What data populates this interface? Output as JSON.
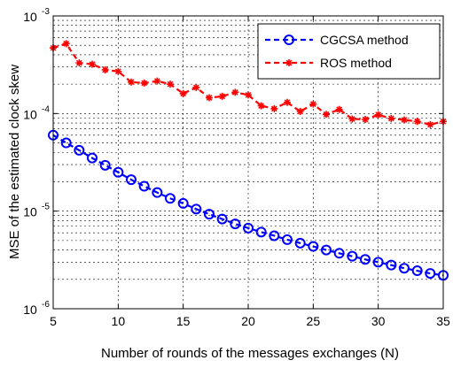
{
  "chart_data": {
    "type": "line",
    "title": "",
    "xlabel": "Number of rounds of the messages exchanges (N)",
    "ylabel": "MSE of the estimated clock skew",
    "xlim": [
      5,
      35
    ],
    "ylim": [
      1e-06,
      0.001
    ],
    "yscale": "log",
    "grid": true,
    "legend_position": "top-right",
    "x_ticks": [
      5,
      10,
      15,
      20,
      25,
      30,
      35
    ],
    "x_tick_labels": [
      "5",
      "10",
      "15",
      "20",
      "25",
      "30",
      "35"
    ],
    "y_ticks": [
      {
        "value": 1e-06,
        "base": "10",
        "exp": "-6"
      },
      {
        "value": 1e-05,
        "base": "10",
        "exp": "-5"
      },
      {
        "value": 0.0001,
        "base": "10",
        "exp": "-4"
      },
      {
        "value": 0.001,
        "base": "10",
        "exp": "-3"
      }
    ],
    "x": [
      5,
      6,
      7,
      8,
      9,
      10,
      11,
      12,
      13,
      14,
      15,
      16,
      17,
      18,
      19,
      20,
      21,
      22,
      23,
      24,
      25,
      26,
      27,
      28,
      29,
      30,
      31,
      32,
      33,
      34,
      35
    ],
    "series": [
      {
        "name": "CGCSA method",
        "color": "#0000ff",
        "marker": "circle",
        "line_style": "dashed",
        "values": [
          6e-05,
          5e-05,
          4.2e-05,
          3.5e-05,
          2.95e-05,
          2.5e-05,
          2.1e-05,
          1.8e-05,
          1.55e-05,
          1.35e-05,
          1.2e-05,
          1.05e-05,
          9.3e-06,
          8.3e-06,
          7.4e-06,
          6.7e-06,
          6.1e-06,
          5.6e-06,
          5.1e-06,
          4.7e-06,
          4.35e-06,
          4e-06,
          3.7e-06,
          3.45e-06,
          3.2e-06,
          3e-06,
          2.8e-06,
          2.6e-06,
          2.45e-06,
          2.3e-06,
          2.2e-06
        ]
      },
      {
        "name": "ROS method",
        "color": "#ff0000",
        "marker": "star",
        "line_style": "dashed",
        "values": [
          0.00047,
          0.00052,
          0.00033,
          0.00032,
          0.00028,
          0.00027,
          0.00021,
          0.000205,
          0.000215,
          0.0002,
          0.00016,
          0.000185,
          0.000145,
          0.00015,
          0.000165,
          0.000155,
          0.00012,
          0.000112,
          0.00013,
          0.000105,
          0.000125,
          9.8e-05,
          0.00011,
          8.8e-05,
          8.7e-05,
          9.7e-05,
          8.9e-05,
          8.6e-05,
          8.3e-05,
          7.7e-05,
          8.3e-05
        ]
      }
    ]
  }
}
